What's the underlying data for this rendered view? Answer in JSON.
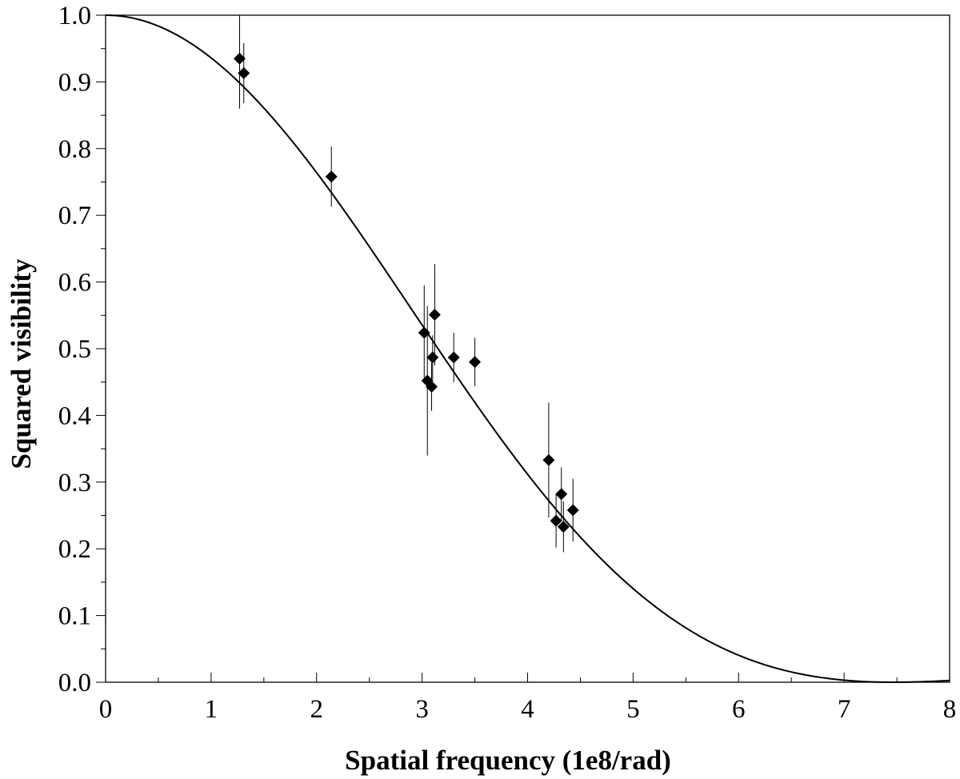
{
  "chart_data": {
    "type": "scatter",
    "title": "",
    "xlabel": "Spatial frequency (1e8/rad)",
    "ylabel": "Squared visibility",
    "xlim": [
      0,
      8
    ],
    "ylim": [
      0,
      1
    ],
    "x_ticks": [
      "0",
      "1",
      "2",
      "3",
      "4",
      "5",
      "6",
      "7",
      "8"
    ],
    "y_ticks": [
      "0.0",
      "0.1",
      "0.2",
      "0.3",
      "0.4",
      "0.5",
      "0.6",
      "0.7",
      "0.8",
      "0.9",
      "1.0"
    ],
    "grid": false,
    "series": [
      {
        "type": "scatter",
        "marker": "diamond",
        "color": "#000000",
        "points": [
          {
            "x": 1.27,
            "y": 0.935,
            "err": 0.075
          },
          {
            "x": 1.31,
            "y": 0.913,
            "err": 0.045
          },
          {
            "x": 2.14,
            "y": 0.758,
            "err": 0.045
          },
          {
            "x": 3.02,
            "y": 0.524,
            "err": 0.071
          },
          {
            "x": 3.05,
            "y": 0.452,
            "err": 0.112
          },
          {
            "x": 3.09,
            "y": 0.443,
            "err": 0.036
          },
          {
            "x": 3.1,
            "y": 0.487,
            "err": 0.033
          },
          {
            "x": 3.12,
            "y": 0.551,
            "err": 0.076
          },
          {
            "x": 3.3,
            "y": 0.487,
            "err": 0.037
          },
          {
            "x": 3.5,
            "y": 0.48,
            "err": 0.036
          },
          {
            "x": 4.2,
            "y": 0.333,
            "err": 0.086
          },
          {
            "x": 4.27,
            "y": 0.242,
            "err": 0.04
          },
          {
            "x": 4.32,
            "y": 0.282,
            "err": 0.04
          },
          {
            "x": 4.34,
            "y": 0.233,
            "err": 0.038
          },
          {
            "x": 4.43,
            "y": 0.258,
            "err": 0.047
          }
        ]
      },
      {
        "type": "line",
        "model": "uniform-disk-fit",
        "color": "#000000",
        "first_null_x": 7.47
      }
    ]
  }
}
